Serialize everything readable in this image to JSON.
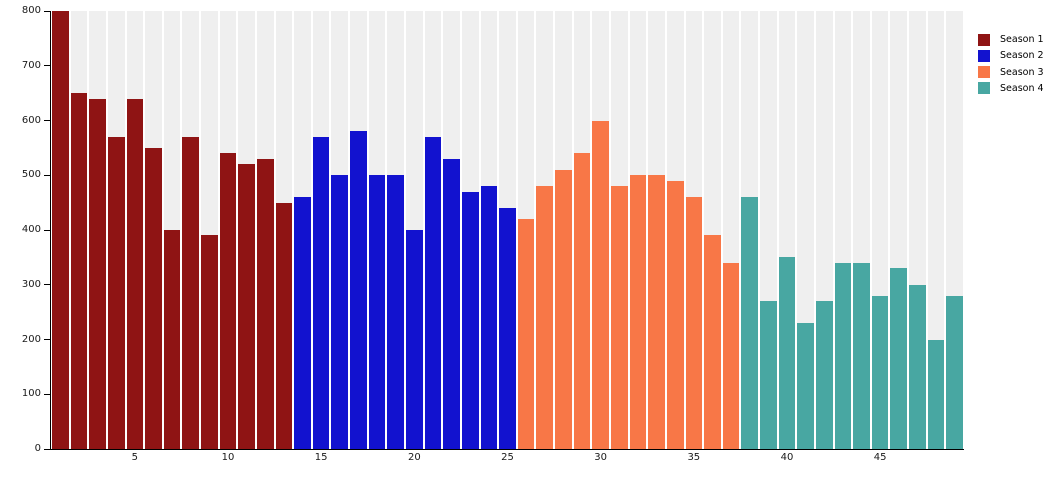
{
  "chart": {
    "background_color": "#ffffff",
    "plot_stripe_color": "#efefef",
    "axis_color": "#000000",
    "tick_label_color": "#1a1a1a"
  },
  "chart_data": {
    "type": "bar",
    "title": "",
    "xlabel": "",
    "ylabel": "",
    "x_first": 1,
    "x_last": 49,
    "ylim": [
      0,
      800
    ],
    "yticks": [
      0,
      100,
      200,
      300,
      400,
      500,
      600,
      700,
      800
    ],
    "xticks": [
      5,
      10,
      15,
      20,
      25,
      30,
      35,
      40,
      45
    ],
    "grid": false,
    "legend_position": "top-right",
    "background_bars": true,
    "series": [
      {
        "name": "Season 1",
        "color": "#8f1414",
        "x_start": 1,
        "values": [
          800,
          650,
          640,
          570,
          640,
          550,
          400,
          570,
          390,
          540,
          520,
          530,
          450
        ]
      },
      {
        "name": "Season 2",
        "color": "#1212cf",
        "x_start": 14,
        "values": [
          460,
          570,
          500,
          580,
          500,
          500,
          400,
          570,
          530,
          470,
          480,
          440
        ]
      },
      {
        "name": "Season 3",
        "color": "#f87747",
        "x_start": 26,
        "values": [
          420,
          480,
          510,
          540,
          600,
          480,
          500,
          500,
          490,
          460,
          390,
          340
        ]
      },
      {
        "name": "Season 4",
        "color": "#48a7a2",
        "x_start": 38,
        "values": [
          460,
          270,
          350,
          230,
          270,
          340,
          340,
          280,
          330,
          300,
          200,
          280
        ]
      }
    ]
  }
}
